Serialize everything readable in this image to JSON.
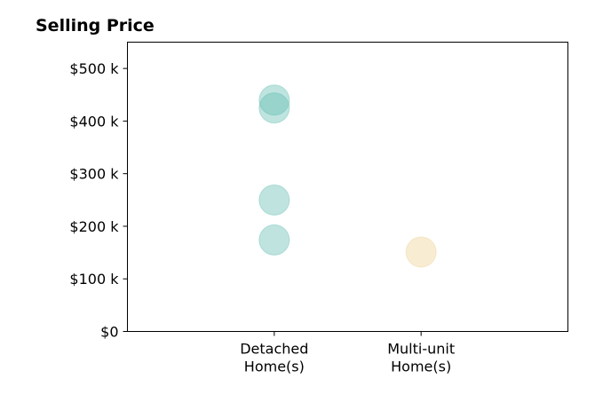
{
  "chart_data": {
    "type": "scatter",
    "title": "Selling Price",
    "xlabel": "",
    "ylabel": "",
    "categories": [
      [
        "Detached",
        "Home(s)"
      ],
      [
        "Multi-unit",
        "Home(s)"
      ]
    ],
    "xlim": [
      0,
      3
    ],
    "ylim": [
      0,
      550000
    ],
    "yticks": [
      0,
      100000,
      200000,
      300000,
      400000,
      500000
    ],
    "ytick_labels": [
      "$0",
      "$100 k",
      "$200 k",
      "$300 k",
      "$400 k",
      "$500 k"
    ],
    "grid": false,
    "series": [
      {
        "category_index": 0,
        "color": "#5fbcb0",
        "opacity": 0.4,
        "values": [
          440000,
          425000,
          250000,
          174000
        ]
      },
      {
        "category_index": 1,
        "color": "#f2d9a6",
        "opacity": 0.5,
        "values": [
          151000
        ]
      }
    ]
  }
}
